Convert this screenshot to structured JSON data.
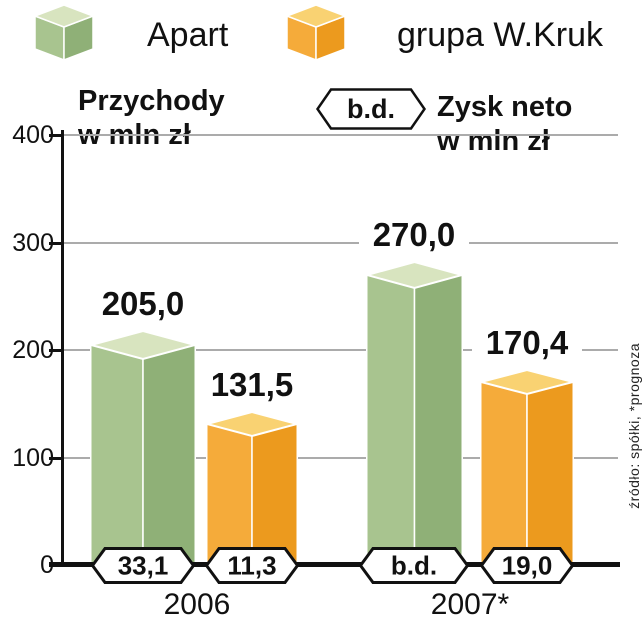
{
  "legend": {
    "items": [
      {
        "label": "Apart"
      },
      {
        "label": "grupa W.Kruk"
      }
    ]
  },
  "header": {
    "revenue_title": [
      "Przychody",
      "w mln zł"
    ],
    "nd_badge": "b.d.",
    "profit_title": [
      "Zysk neto",
      "w mln zł"
    ]
  },
  "axis": {
    "yticks": [
      "400",
      "300",
      "200",
      "100",
      "0"
    ]
  },
  "source_note": "źródło: spółki, *prognoza",
  "chart_data": {
    "type": "bar",
    "title": "Przychody w mln zł",
    "secondary_title": "Zysk neto w mln zł",
    "no_data_marker": "b.d.",
    "categories": [
      "2006",
      "2007*"
    ],
    "series": [
      {
        "name": "Apart",
        "values": [
          205.0,
          270.0
        ],
        "value_labels": [
          "205,0",
          "270,0"
        ],
        "net_profit_labels": [
          "33,1",
          "b.d."
        ],
        "color_top": "#d8e4bf",
        "color_left": "#a8c48f",
        "color_right": "#8fb077"
      },
      {
        "name": "grupa W.Kruk",
        "values": [
          131.5,
          170.4
        ],
        "value_labels": [
          "131,5",
          "170,4"
        ],
        "net_profit_labels": [
          "11,3",
          "19,0"
        ],
        "color_top": "#f9d272",
        "color_left": "#f5ab3a",
        "color_right": "#ec9a1e"
      }
    ],
    "ylim": [
      0,
      400
    ],
    "yticks": [
      0,
      100,
      200,
      300,
      400
    ],
    "grid": true,
    "legend_position": "top"
  }
}
